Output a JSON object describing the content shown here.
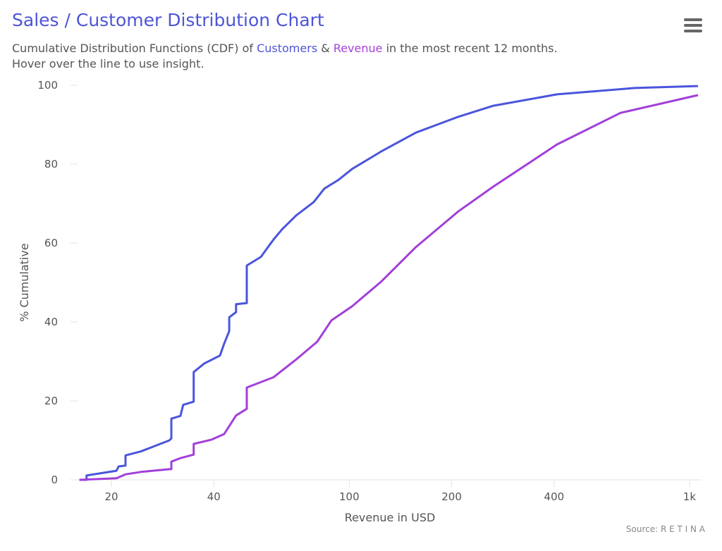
{
  "header": {
    "title": "Sales / Customer Distribution Chart",
    "subtitle_pre": "Cumulative Distribution Functions (CDF) of ",
    "subtitle_customers": "Customers",
    "subtitle_amp": " & ",
    "subtitle_revenue": "Revenue",
    "subtitle_post": " in the most recent 12 months.",
    "subtitle_line2": "Hover over the line to use insight.",
    "menu_icon": "hamburger-menu-icon"
  },
  "source": "Source: R E T I N A",
  "chart_data": {
    "type": "line",
    "title": "Sales / Customer Distribution Chart",
    "xlabel": "Revenue in USD",
    "ylabel": "% Cumulative",
    "xscale": "log",
    "xlim": [
      15,
      1100
    ],
    "ylim": [
      0,
      100
    ],
    "xticks": [
      {
        "value": 20,
        "label": "20"
      },
      {
        "value": 40,
        "label": "40"
      },
      {
        "value": 100,
        "label": "100"
      },
      {
        "value": 200,
        "label": "200"
      },
      {
        "value": 400,
        "label": "400"
      },
      {
        "value": 1000,
        "label": "1k"
      }
    ],
    "yticks": [
      {
        "value": 0,
        "label": "0"
      },
      {
        "value": 20,
        "label": "20"
      },
      {
        "value": 40,
        "label": "40"
      },
      {
        "value": 60,
        "label": "60"
      },
      {
        "value": 80,
        "label": "80"
      },
      {
        "value": 100,
        "label": "100"
      }
    ],
    "grid": false,
    "series": [
      {
        "name": "Customers",
        "color": "#4a55dc",
        "points": [
          [
            16.1,
            0
          ],
          [
            16.9,
            0
          ],
          [
            16.9,
            1.1
          ],
          [
            20.7,
            2.3
          ],
          [
            21,
            3.4
          ],
          [
            22,
            3.6
          ],
          [
            22,
            6.2
          ],
          [
            24.4,
            7.2
          ],
          [
            29.6,
            10
          ],
          [
            30,
            10.5
          ],
          [
            30,
            15.5
          ],
          [
            31.9,
            16.2
          ],
          [
            32.5,
            19
          ],
          [
            34.9,
            19.8
          ],
          [
            34.9,
            27.3
          ],
          [
            37.5,
            29.5
          ],
          [
            41.7,
            31.5
          ],
          [
            42.9,
            34.5
          ],
          [
            44.4,
            37.7
          ],
          [
            44.4,
            41.2
          ],
          [
            46.5,
            42.5
          ],
          [
            46.5,
            44.5
          ],
          [
            50,
            44.8
          ],
          [
            50,
            54.3
          ],
          [
            55,
            56.5
          ],
          [
            59.9,
            60.9
          ],
          [
            63.5,
            63.5
          ],
          [
            69.8,
            67
          ],
          [
            78.6,
            70.4
          ],
          [
            84.5,
            73.8
          ],
          [
            92.9,
            76
          ],
          [
            102,
            78.8
          ],
          [
            124,
            83.2
          ],
          [
            157,
            88
          ],
          [
            209,
            92
          ],
          [
            265,
            94.8
          ],
          [
            408,
            97.7
          ],
          [
            690,
            99.3
          ],
          [
            1059,
            99.8
          ]
        ]
      },
      {
        "name": "Revenue",
        "color": "#a23fd9",
        "points": [
          [
            16.1,
            0
          ],
          [
            20.7,
            0.4
          ],
          [
            22,
            1.4
          ],
          [
            24.4,
            2
          ],
          [
            29.6,
            2.7
          ],
          [
            30,
            2.7
          ],
          [
            30,
            4.6
          ],
          [
            31.9,
            5.5
          ],
          [
            34.9,
            6.4
          ],
          [
            34.9,
            9.1
          ],
          [
            39.4,
            10.2
          ],
          [
            42.9,
            11.6
          ],
          [
            44.4,
            13.6
          ],
          [
            46.5,
            16.3
          ],
          [
            50,
            18
          ],
          [
            50,
            23.4
          ],
          [
            59.9,
            26
          ],
          [
            69.8,
            30.5
          ],
          [
            80.5,
            35
          ],
          [
            88.6,
            40.4
          ],
          [
            102,
            44
          ],
          [
            124,
            50.2
          ],
          [
            157,
            59
          ],
          [
            209,
            68
          ],
          [
            265,
            74.3
          ],
          [
            408,
            85
          ],
          [
            627,
            93
          ],
          [
            1059,
            97.5
          ]
        ]
      }
    ]
  }
}
